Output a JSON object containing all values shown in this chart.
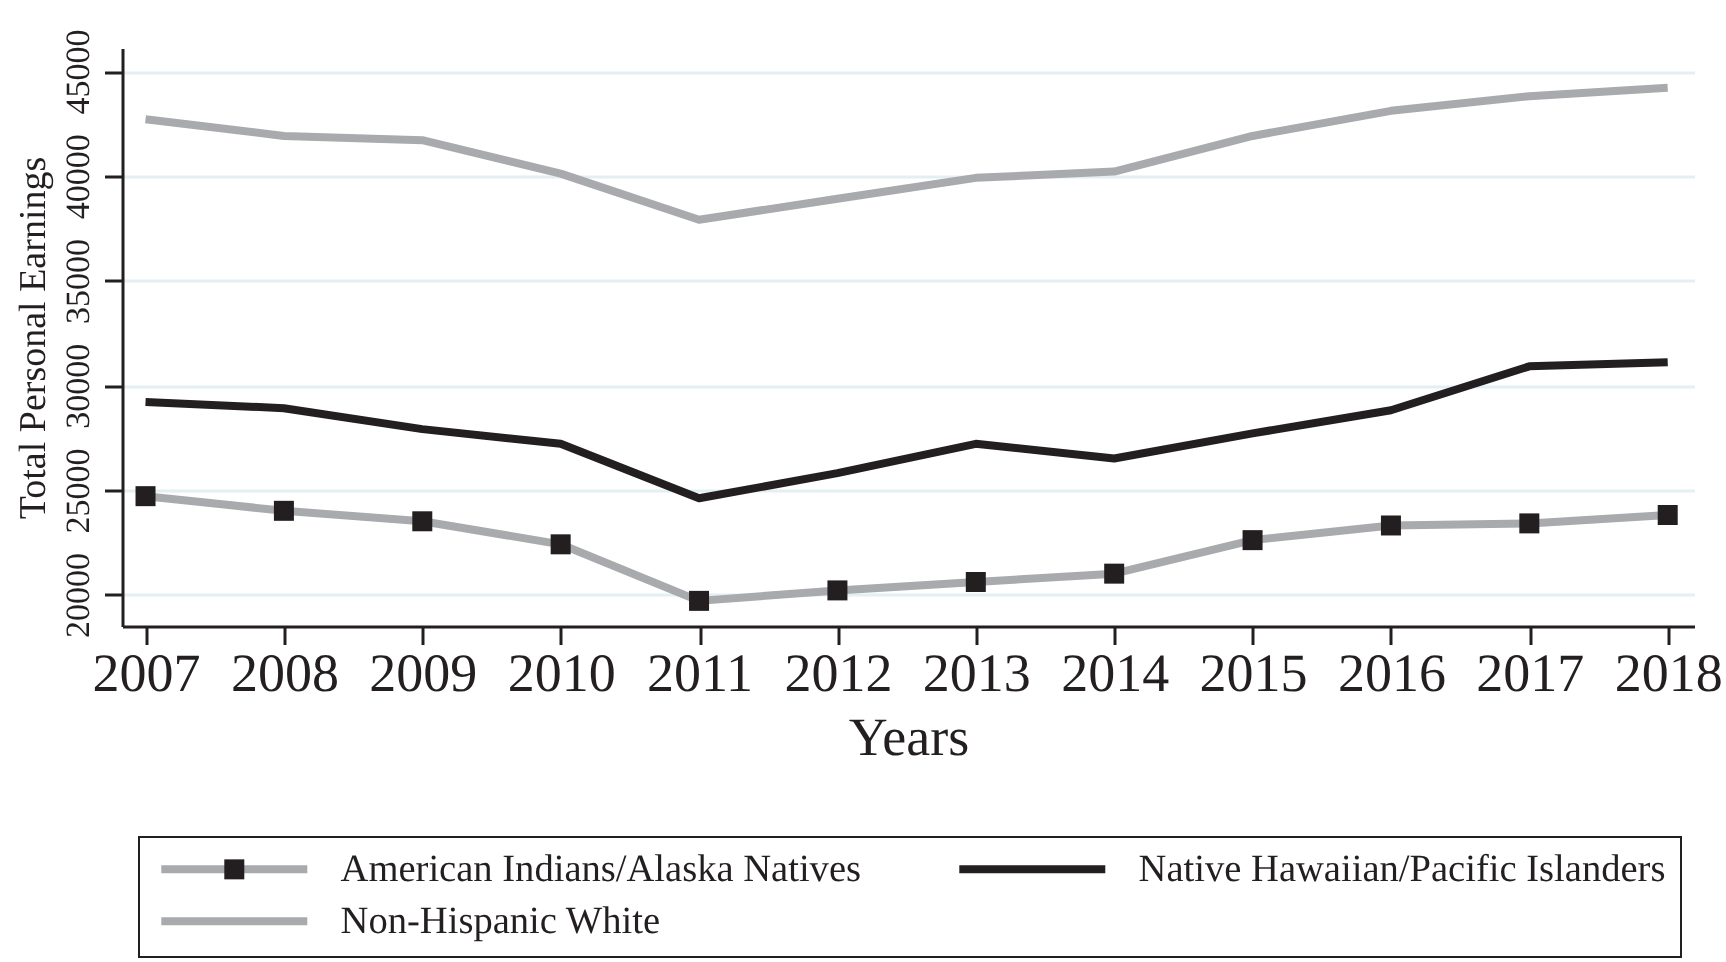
{
  "chart_data": {
    "type": "line",
    "xlabel": "Years",
    "ylabel": "Total Personal Earnings",
    "x": [
      2007,
      2008,
      2009,
      2010,
      2011,
      2012,
      2013,
      2014,
      2015,
      2016,
      2017,
      2018
    ],
    "xlim": [
      2006.83,
      2018.19
    ],
    "xticks": [
      2007,
      2008,
      2009,
      2010,
      2011,
      2012,
      2013,
      2014,
      2015,
      2016,
      2017,
      2018
    ],
    "ylim": [
      18500,
      46100
    ],
    "yticks": [
      20000,
      25000,
      30000,
      35000,
      40000,
      45000
    ],
    "grid": "y",
    "legend": "bottom",
    "series": [
      {
        "name": "American Indians/Alaska Natives",
        "color": "#a9aaad",
        "marker": "square",
        "values": [
          24700,
          24000,
          23500,
          22400,
          19700,
          20200,
          20600,
          21000,
          22600,
          23300,
          23400,
          23800
        ]
      },
      {
        "name": "Native Hawaiian/Pacific Islanders",
        "color": "#231f20",
        "values": [
          29200,
          28900,
          27900,
          27200,
          24600,
          25800,
          27200,
          26500,
          27700,
          28800,
          30900,
          31100
        ]
      },
      {
        "name": "Non-Hispanic White",
        "color": "#a9aaad",
        "values": [
          42700,
          41900,
          41700,
          40100,
          37900,
          38900,
          39900,
          40200,
          41900,
          43100,
          43800,
          44200
        ]
      }
    ]
  }
}
